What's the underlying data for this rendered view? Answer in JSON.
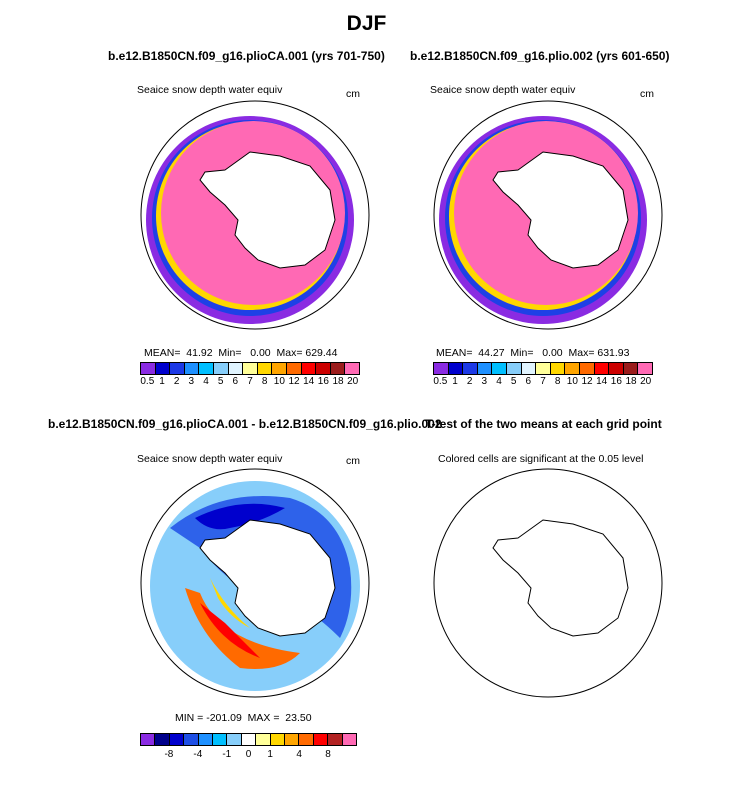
{
  "figure": {
    "title": "DJF",
    "panel_a_title": "b.e12.B1850CN.f09_g16.plioCA.001 (yrs 701-750)",
    "panel_b_title": "b.e12.B1850CN.f09_g16.plio.002 (yrs 601-650)",
    "panel_c_title": "b.e12.B1850CN.f09_g16.plioCA.001 - b.e12.B1850CN.f09_g16.plio.002",
    "panel_d_title": "T-test of the two means at each grid point"
  },
  "chart_data": [
    {
      "type": "heatmap",
      "projection": "south-polar-stereographic",
      "label": "Seaice snow depth water equiv",
      "units": "cm",
      "stats_text": "MEAN=  41.92  Min=   0.00  Max= 629.44",
      "levels": [
        "0.5",
        "1",
        "2",
        "3",
        "4",
        "5",
        "6",
        "7",
        "8",
        "10",
        "12",
        "14",
        "16",
        "18",
        "20"
      ],
      "colors": [
        "#8a2be2",
        "#0000cd",
        "#1c39e6",
        "#1e90ff",
        "#00bfff",
        "#87cefa",
        "#e0f4ff",
        "#ffff99",
        "#ffd700",
        "#ffa500",
        "#ff6a00",
        "#ff0000",
        "#cc0000",
        "#9b1c1c",
        "#ff69b4"
      ]
    },
    {
      "type": "heatmap",
      "projection": "south-polar-stereographic",
      "label": "Seaice snow depth water equiv",
      "units": "cm",
      "stats_text": "MEAN=  44.27  Min=   0.00  Max= 631.93",
      "levels": [
        "0.5",
        "1",
        "2",
        "3",
        "4",
        "5",
        "6",
        "7",
        "8",
        "10",
        "12",
        "14",
        "16",
        "18",
        "20"
      ],
      "colors": [
        "#8a2be2",
        "#0000cd",
        "#1c39e6",
        "#1e90ff",
        "#00bfff",
        "#87cefa",
        "#e0f4ff",
        "#ffff99",
        "#ffd700",
        "#ffa500",
        "#ff6a00",
        "#ff0000",
        "#cc0000",
        "#9b1c1c",
        "#ff69b4"
      ]
    },
    {
      "type": "heatmap",
      "projection": "south-polar-stereographic",
      "label": "Seaice snow depth water equiv",
      "units": "cm",
      "stats_text": "MIN = -201.09  MAX =  23.50",
      "tick_labels": [
        "-8",
        "-4",
        "-1",
        "0",
        "1",
        "4",
        "8"
      ],
      "colors": [
        "#8a2be2",
        "#00008b",
        "#0000cd",
        "#1e4fe6",
        "#1e90ff",
        "#00bfff",
        "#87cefa",
        "#ffffff",
        "#ffff99",
        "#ffd700",
        "#ffa500",
        "#ff6a00",
        "#ff0000",
        "#b22222",
        "#ff69b4"
      ]
    },
    {
      "type": "heatmap",
      "projection": "south-polar-stereographic",
      "label": "Colored cells are significant at the 0.05 level"
    }
  ]
}
